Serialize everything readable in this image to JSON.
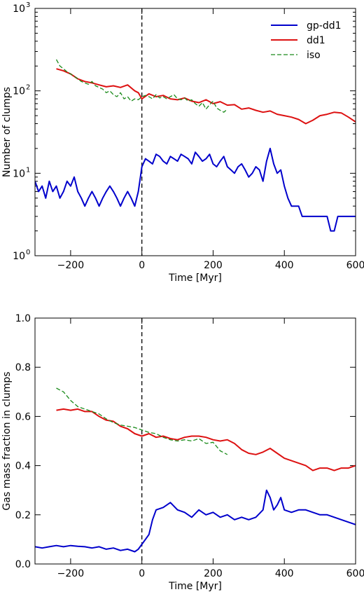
{
  "chart_data": [
    {
      "type": "line",
      "title": "",
      "xlabel": "Time [Myr]",
      "ylabel": "Number of clumps",
      "xlim": [
        -300,
        600
      ],
      "ylim": [
        1,
        1000
      ],
      "yscale": "log",
      "x_ticks": [
        -200,
        0,
        200,
        400,
        600
      ],
      "x_tick_labels": [
        "−200",
        "0",
        "200",
        "400",
        "600"
      ],
      "y_ticks": [
        1,
        10,
        100,
        1000
      ],
      "y_tick_labels": [
        "10",
        "10",
        "10",
        "10"
      ],
      "y_tick_exponents": [
        "0",
        "1",
        "2",
        "3"
      ],
      "vline_x": 0,
      "legend_position": "top-right",
      "series": [
        {
          "name": "gp-dd1",
          "color": "#0000cc",
          "style": "solid",
          "x": [
            -300,
            -290,
            -280,
            -270,
            -260,
            -250,
            -240,
            -230,
            -220,
            -210,
            -200,
            -190,
            -180,
            -170,
            -160,
            -150,
            -140,
            -130,
            -120,
            -110,
            -100,
            -90,
            -80,
            -70,
            -60,
            -50,
            -40,
            -30,
            -20,
            -10,
            0,
            10,
            20,
            30,
            40,
            50,
            60,
            70,
            80,
            90,
            100,
            110,
            120,
            130,
            140,
            150,
            160,
            170,
            180,
            190,
            200,
            210,
            220,
            230,
            240,
            250,
            260,
            270,
            280,
            290,
            300,
            310,
            320,
            330,
            340,
            350,
            360,
            370,
            380,
            390,
            400,
            410,
            420,
            430,
            440,
            450,
            460,
            470,
            480,
            490,
            500,
            510,
            520,
            530,
            540,
            550,
            560,
            570,
            580,
            590,
            600
          ],
          "values": [
            8,
            6,
            7,
            5,
            8,
            6,
            7,
            5,
            6,
            8,
            7,
            9,
            6,
            5,
            4,
            5,
            6,
            5,
            4,
            5,
            6,
            7,
            6,
            5,
            4,
            5,
            6,
            5,
            4,
            6,
            12,
            15,
            14,
            13,
            17,
            16,
            14,
            13,
            16,
            15,
            14,
            17,
            16,
            15,
            13,
            18,
            16,
            14,
            15,
            17,
            13,
            12,
            14,
            16,
            12,
            11,
            10,
            12,
            13,
            11,
            9,
            10,
            12,
            11,
            8,
            14,
            20,
            13,
            10,
            11,
            7,
            5,
            4,
            4,
            4,
            3,
            3,
            3,
            3,
            3,
            3,
            3,
            3,
            2,
            2,
            3,
            3,
            3,
            3,
            3,
            3
          ]
        },
        {
          "name": "dd1",
          "color": "#dd1111",
          "style": "solid",
          "x": [
            -240,
            -220,
            -200,
            -180,
            -160,
            -140,
            -120,
            -100,
            -80,
            -60,
            -40,
            -20,
            -10,
            0,
            20,
            40,
            60,
            80,
            100,
            120,
            140,
            160,
            180,
            200,
            220,
            240,
            260,
            280,
            300,
            320,
            340,
            360,
            380,
            400,
            420,
            440,
            460,
            480,
            500,
            520,
            540,
            560,
            580,
            600
          ],
          "values": [
            185,
            175,
            160,
            140,
            130,
            125,
            118,
            112,
            115,
            110,
            118,
            100,
            95,
            80,
            92,
            85,
            88,
            80,
            78,
            82,
            75,
            72,
            78,
            70,
            74,
            67,
            68,
            60,
            62,
            58,
            55,
            57,
            52,
            50,
            48,
            45,
            40,
            44,
            50,
            52,
            55,
            54,
            48,
            42
          ]
        },
        {
          "name": "iso",
          "color": "#1a8a1a",
          "style": "dashed",
          "x": [
            -240,
            -230,
            -220,
            -210,
            -200,
            -190,
            -180,
            -170,
            -160,
            -150,
            -140,
            -130,
            -120,
            -110,
            -100,
            -90,
            -80,
            -70,
            -60,
            -50,
            -40,
            -30,
            -20,
            -10,
            0,
            10,
            20,
            30,
            40,
            50,
            60,
            70,
            80,
            90,
            100,
            110,
            120,
            130,
            140,
            150,
            160,
            170,
            180,
            190,
            200,
            210,
            220,
            230,
            240
          ],
          "values": [
            240,
            200,
            185,
            170,
            160,
            150,
            140,
            130,
            125,
            120,
            130,
            115,
            110,
            105,
            95,
            100,
            90,
            85,
            95,
            80,
            85,
            75,
            80,
            78,
            85,
            88,
            85,
            80,
            90,
            82,
            85,
            80,
            85,
            90,
            80,
            78,
            82,
            75,
            78,
            70,
            65,
            72,
            60,
            68,
            75,
            62,
            58,
            55,
            60
          ]
        }
      ]
    },
    {
      "type": "line",
      "title": "",
      "xlabel": "Time [Myr]",
      "ylabel": "Gas mass fraction in clumps",
      "xlim": [
        -300,
        600
      ],
      "ylim": [
        0.0,
        1.0
      ],
      "yscale": "linear",
      "x_ticks": [
        -200,
        0,
        200,
        400,
        600
      ],
      "x_tick_labels": [
        "−200",
        "0",
        "200",
        "400",
        "600"
      ],
      "y_ticks": [
        0.0,
        0.2,
        0.4,
        0.6,
        0.8,
        1.0
      ],
      "y_tick_labels": [
        "0.0",
        "0.2",
        "0.4",
        "0.6",
        "0.8",
        "1.0"
      ],
      "vline_x": 0,
      "series": [
        {
          "name": "gp-dd1",
          "color": "#0000cc",
          "style": "solid",
          "x": [
            -300,
            -280,
            -260,
            -240,
            -220,
            -200,
            -180,
            -160,
            -140,
            -120,
            -100,
            -80,
            -60,
            -40,
            -20,
            -10,
            0,
            10,
            20,
            30,
            40,
            60,
            80,
            100,
            120,
            140,
            160,
            180,
            200,
            220,
            240,
            260,
            280,
            300,
            320,
            340,
            350,
            360,
            370,
            380,
            390,
            400,
            420,
            440,
            460,
            480,
            500,
            520,
            540,
            560,
            580,
            600
          ],
          "values": [
            0.07,
            0.065,
            0.07,
            0.075,
            0.07,
            0.075,
            0.072,
            0.07,
            0.065,
            0.07,
            0.06,
            0.065,
            0.055,
            0.06,
            0.05,
            0.06,
            0.08,
            0.1,
            0.12,
            0.18,
            0.22,
            0.23,
            0.25,
            0.22,
            0.21,
            0.19,
            0.22,
            0.2,
            0.21,
            0.19,
            0.2,
            0.18,
            0.19,
            0.18,
            0.19,
            0.22,
            0.3,
            0.27,
            0.22,
            0.24,
            0.27,
            0.22,
            0.21,
            0.22,
            0.22,
            0.21,
            0.2,
            0.2,
            0.19,
            0.18,
            0.17,
            0.16
          ]
        },
        {
          "name": "dd1",
          "color": "#dd1111",
          "style": "solid",
          "x": [
            -240,
            -220,
            -200,
            -180,
            -160,
            -140,
            -120,
            -100,
            -80,
            -60,
            -40,
            -20,
            0,
            20,
            40,
            60,
            80,
            100,
            120,
            140,
            160,
            180,
            200,
            220,
            240,
            260,
            280,
            300,
            320,
            340,
            360,
            380,
            400,
            420,
            440,
            460,
            480,
            500,
            520,
            540,
            560,
            580,
            600
          ],
          "values": [
            0.625,
            0.63,
            0.625,
            0.63,
            0.62,
            0.62,
            0.6,
            0.585,
            0.58,
            0.56,
            0.55,
            0.53,
            0.52,
            0.53,
            0.515,
            0.52,
            0.51,
            0.505,
            0.515,
            0.52,
            0.52,
            0.515,
            0.505,
            0.5,
            0.505,
            0.49,
            0.465,
            0.45,
            0.445,
            0.455,
            0.47,
            0.45,
            0.43,
            0.42,
            0.41,
            0.4,
            0.38,
            0.39,
            0.39,
            0.38,
            0.39,
            0.39,
            0.4
          ]
        },
        {
          "name": "iso",
          "color": "#1a8a1a",
          "style": "dashed",
          "x": [
            -240,
            -220,
            -200,
            -180,
            -160,
            -140,
            -120,
            -100,
            -80,
            -60,
            -40,
            -20,
            0,
            20,
            40,
            60,
            80,
            100,
            120,
            140,
            160,
            180,
            200,
            220,
            240
          ],
          "values": [
            0.715,
            0.7,
            0.665,
            0.64,
            0.63,
            0.62,
            0.61,
            0.59,
            0.575,
            0.565,
            0.56,
            0.555,
            0.545,
            0.535,
            0.53,
            0.515,
            0.505,
            0.5,
            0.505,
            0.5,
            0.51,
            0.49,
            0.495,
            0.46,
            0.445
          ]
        }
      ]
    }
  ]
}
